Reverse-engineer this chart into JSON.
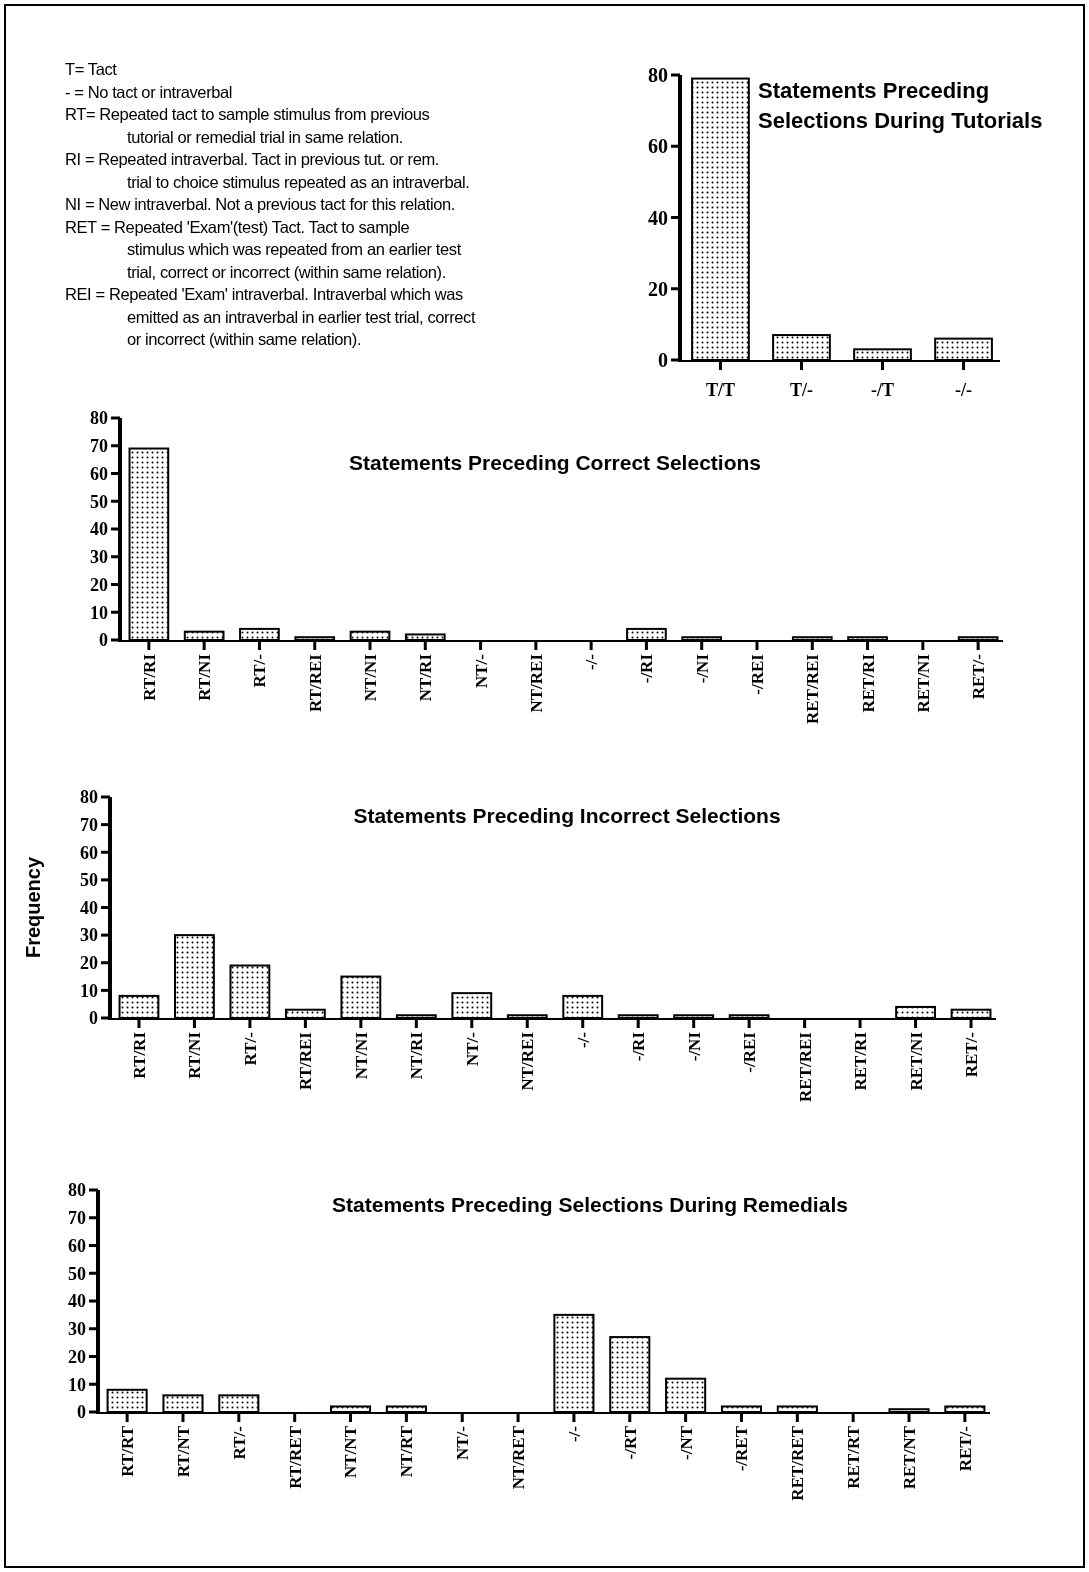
{
  "chart_data": [
    {
      "type": "other",
      "annotations": [
        "T= Tact",
        "- = No tact or intraverbal",
        "RT= Repeated tact to sample stimulus from previous\ntutorial or  remedial trial in same relation.",
        "RI = Repeated intraverbal. Tact in previous tut. or rem.\ntrial to choice stimulus repeated as an intraverbal.",
        "NI = New intraverbal. Not a previous tact for this relation.",
        "RET = Repeated 'Exam'(test) Tact. Tact to sample\nstimulus  which was  repeated from an earlier test\ntrial, correct or incorrect (within same relation).",
        "REI = Repeated 'Exam' intraverbal. Intraverbal which was\nemitted as  an intraverbal in earlier test trial, correct\nor incorrect (within same  relation)."
      ]
    },
    {
      "type": "bar",
      "title": "Statements Preceding\nSelections During Tutorials",
      "categories": [
        "T/T",
        "T/-",
        "-/T",
        "-/-"
      ],
      "values": [
        79,
        7,
        3,
        6
      ],
      "color": "#000000",
      "ylim": [
        0,
        80
      ],
      "yticks": [
        0,
        20,
        40,
        60,
        80
      ]
    },
    {
      "type": "bar",
      "title": "Statements Preceding Correct Selections",
      "categories": [
        "RT/RI",
        "RT/NI",
        "RT/-",
        "RT/REI",
        "NT/NI",
        "NT/RI",
        "NT/-",
        "NT/REI",
        "-/-",
        "-/RI",
        "-/NI",
        "-/REI",
        "RET/REI",
        "RET/RI",
        "RET/NI",
        "RET/-"
      ],
      "values": [
        69,
        3,
        4,
        1,
        3,
        2,
        0,
        0,
        0,
        4,
        1,
        0,
        1,
        1,
        0,
        1
      ],
      "color": "#000000",
      "ylim": [
        0,
        80
      ],
      "yticks": [
        0,
        10,
        20,
        30,
        40,
        50,
        60,
        70,
        80
      ]
    },
    {
      "type": "bar",
      "title": "Statements Preceding Incorrect Selections",
      "ylabel": "Frequency",
      "categories": [
        "RT/RI",
        "RT/NI",
        "RT/-",
        "RT/REI",
        "NT/NI",
        "NT/RI",
        "NT/-",
        "NT/REI",
        "-/-",
        "-/RI",
        "-/NI",
        "-/REI",
        "RET/REI",
        "RET/RI",
        "RET/NI",
        "RET/-"
      ],
      "values": [
        8,
        30,
        19,
        3,
        15,
        1,
        9,
        1,
        8,
        1,
        1,
        1,
        0,
        0,
        4,
        3
      ],
      "color": "#000000",
      "ylim": [
        0,
        80
      ],
      "yticks": [
        0,
        10,
        20,
        30,
        40,
        50,
        60,
        70,
        80
      ]
    },
    {
      "type": "bar",
      "title": "Statements Preceding Selections During Remedials",
      "categories": [
        "RT/RT",
        "RT/NT",
        "RT/-",
        "RT/RET",
        "NT/NT",
        "NT/RT",
        "NT/-",
        "NT/RET",
        "-/-",
        "-/RT",
        "-/NT",
        "-/RET",
        "RET/RET",
        "RET/RT",
        "RET/NT",
        "RET/-"
      ],
      "values": [
        8,
        6,
        6,
        0,
        2,
        2,
        0,
        0,
        35,
        27,
        12,
        2,
        2,
        0,
        1,
        2
      ],
      "color": "#000000",
      "ylim": [
        0,
        80
      ],
      "yticks": [
        0,
        10,
        20,
        30,
        40,
        50,
        60,
        70,
        80
      ]
    }
  ]
}
